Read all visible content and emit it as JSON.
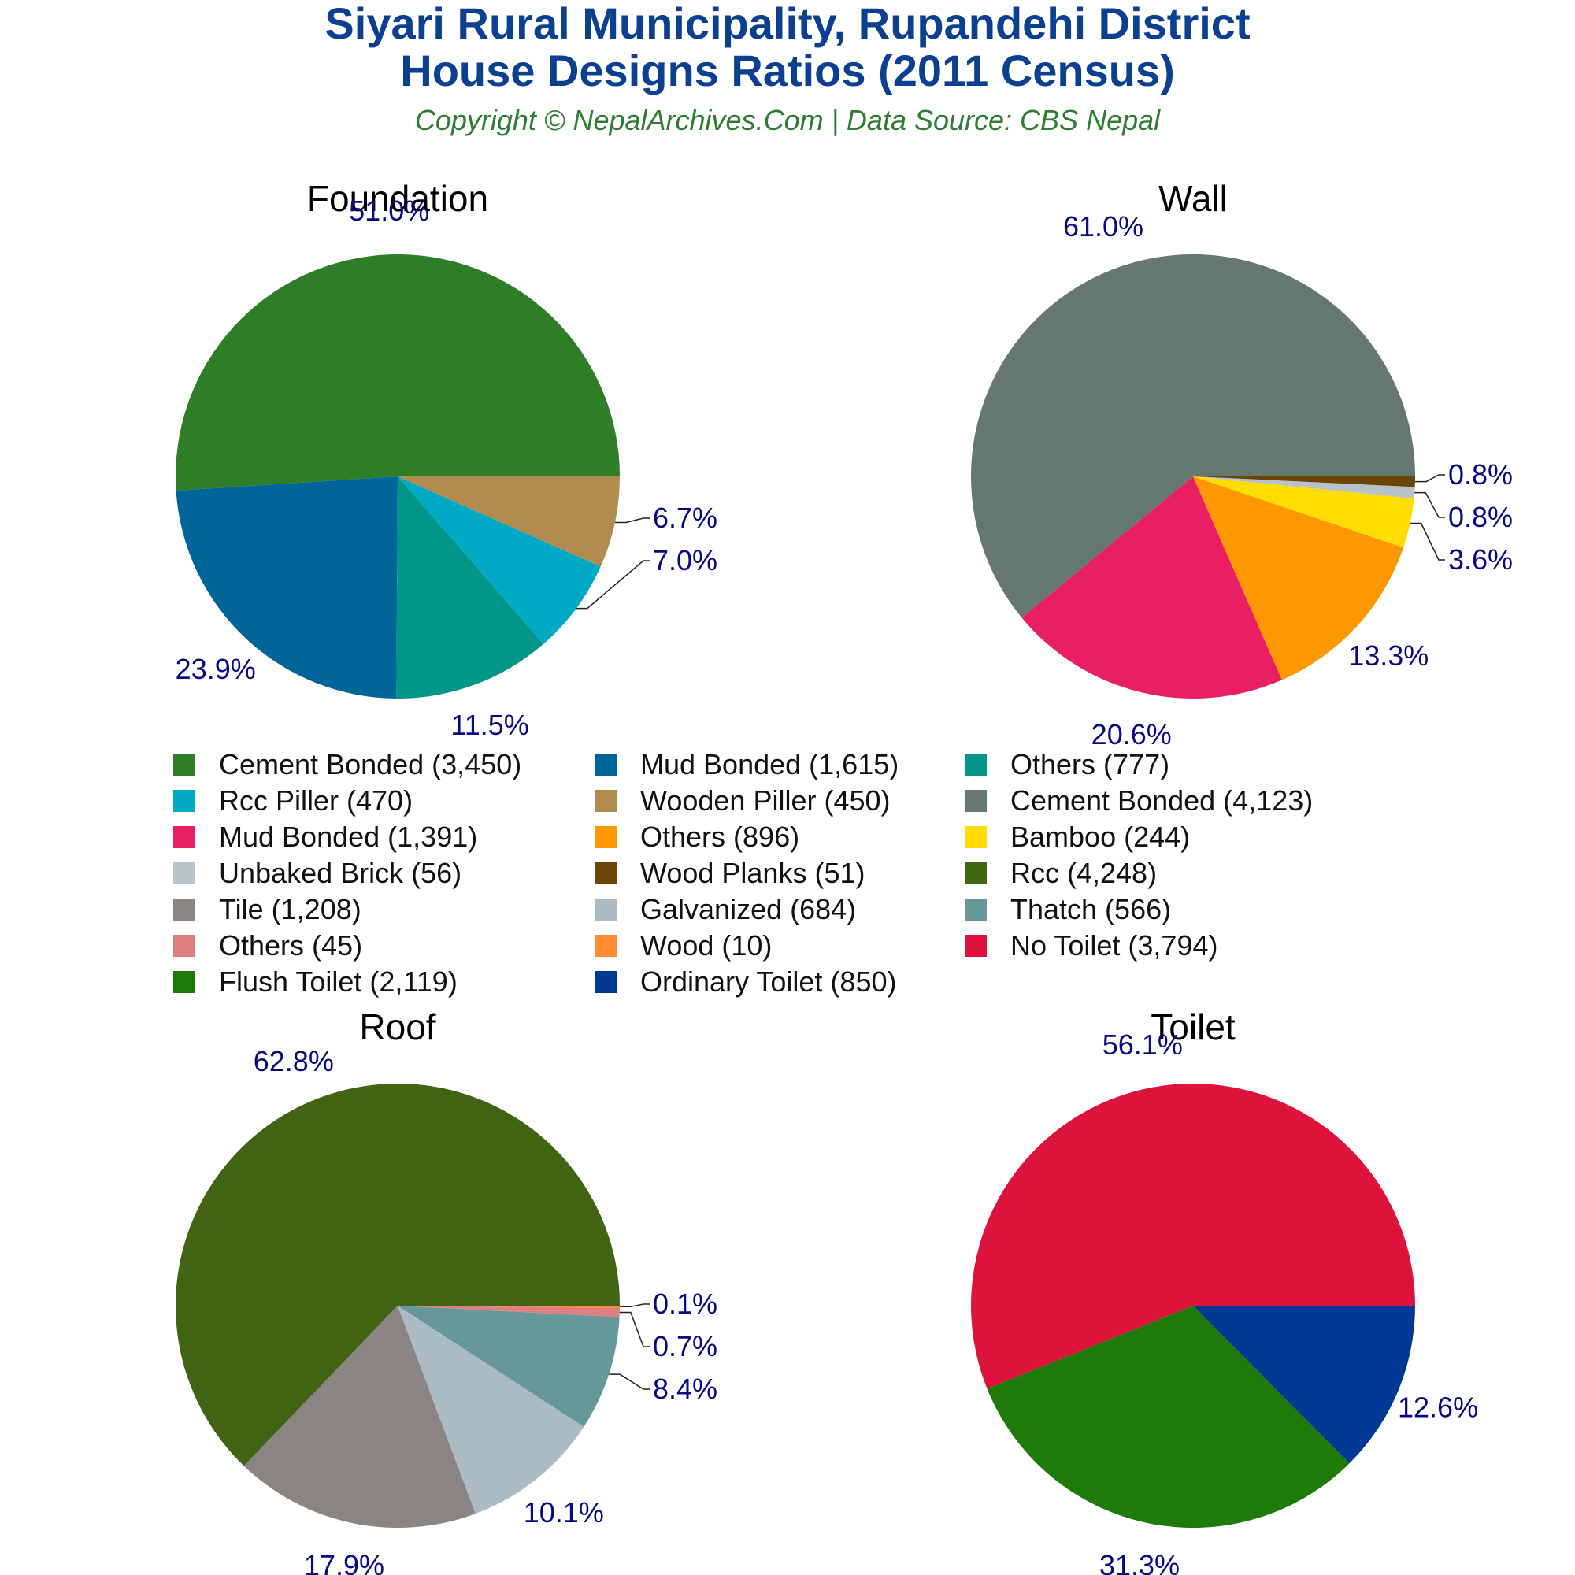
{
  "title_line1": "Siyari Rural Municipality, Rupandehi District",
  "title_line2": "House Designs Ratios (2011 Census)",
  "subtitle": "Copyright © NepalArchives.Com | Data Source: CBS Nepal",
  "colors": {
    "title": "#0b3f8f",
    "subtitle": "#2e7d32",
    "pct_label": "#0a0a80"
  },
  "legend": [
    {
      "label": "Cement Bonded (3,450)",
      "color": "#2e7d27"
    },
    {
      "label": "Mud Bonded (1,615)",
      "color": "#006699"
    },
    {
      "label": "Others (777)",
      "color": "#009688"
    },
    {
      "label": "Rcc Piller (470)",
      "color": "#00aac4"
    },
    {
      "label": "Wooden Piller (450)",
      "color": "#b08d4f"
    },
    {
      "label": "Cement Bonded (4,123)",
      "color": "#657870"
    },
    {
      "label": "Mud Bonded (1,391)",
      "color": "#e91e63"
    },
    {
      "label": "Others (896)",
      "color": "#ff9800"
    },
    {
      "label": "Bamboo (244)",
      "color": "#ffdd00"
    },
    {
      "label": "Unbaked Brick (56)",
      "color": "#b7c3c8"
    },
    {
      "label": "Wood Planks (51)",
      "color": "#6b4508"
    },
    {
      "label": "Rcc (4,248)",
      "color": "#416413"
    },
    {
      "label": "Tile (1,208)",
      "color": "#8a8582"
    },
    {
      "label": "Galvanized (684)",
      "color": "#aabbc3"
    },
    {
      "label": "Thatch (566)",
      "color": "#659999"
    },
    {
      "label": "Others (45)",
      "color": "#df8080"
    },
    {
      "label": "Wood (10)",
      "color": "#ff8c33"
    },
    {
      "label": "No Toilet (3,794)",
      "color": "#dc143c"
    },
    {
      "label": "Flush Toilet (2,119)",
      "color": "#1e7b0a"
    },
    {
      "label": "Ordinary Toilet (850)",
      "color": "#003893"
    }
  ],
  "chart_data": [
    {
      "type": "pie",
      "title": "Foundation",
      "slices": [
        {
          "name": "Cement Bonded",
          "value": 3450,
          "label": "51.0%",
          "color": "#2e7d27"
        },
        {
          "name": "Mud Bonded",
          "value": 1615,
          "label": "23.9%",
          "color": "#006699"
        },
        {
          "name": "Others",
          "value": 777,
          "label": "11.5%",
          "color": "#009688"
        },
        {
          "name": "Rcc Piller",
          "value": 470,
          "label": "7.0%",
          "color": "#00aac4"
        },
        {
          "name": "Wooden Piller",
          "value": 450,
          "label": "6.7%",
          "color": "#b08d4f"
        }
      ]
    },
    {
      "type": "pie",
      "title": "Wall",
      "slices": [
        {
          "name": "Cement Bonded",
          "value": 4123,
          "label": "61.0%",
          "color": "#657870"
        },
        {
          "name": "Mud Bonded",
          "value": 1391,
          "label": "20.6%",
          "color": "#e91e63"
        },
        {
          "name": "Others",
          "value": 896,
          "label": "13.3%",
          "color": "#ff9800"
        },
        {
          "name": "Bamboo",
          "value": 244,
          "label": "3.6%",
          "color": "#ffdd00"
        },
        {
          "name": "Unbaked Brick",
          "value": 56,
          "label": "0.8%",
          "color": "#b7c3c8"
        },
        {
          "name": "Wood Planks",
          "value": 51,
          "label": "0.8%",
          "color": "#6b4508"
        }
      ]
    },
    {
      "type": "pie",
      "title": "Roof",
      "slices": [
        {
          "name": "Rcc",
          "value": 4248,
          "label": "62.8%",
          "color": "#416413"
        },
        {
          "name": "Tile",
          "value": 1208,
          "label": "17.9%",
          "color": "#8a8582"
        },
        {
          "name": "Galvanized",
          "value": 684,
          "label": "10.1%",
          "color": "#aabbc3"
        },
        {
          "name": "Thatch",
          "value": 566,
          "label": "8.4%",
          "color": "#659999"
        },
        {
          "name": "Others",
          "value": 45,
          "label": "0.7%",
          "color": "#df8080"
        },
        {
          "name": "Wood",
          "value": 10,
          "label": "0.1%",
          "color": "#ff8c33"
        }
      ]
    },
    {
      "type": "pie",
      "title": "Toilet",
      "slices": [
        {
          "name": "No Toilet",
          "value": 3794,
          "label": "56.1%",
          "color": "#dc143c"
        },
        {
          "name": "Flush Toilet",
          "value": 2119,
          "label": "31.3%",
          "color": "#1e7b0a"
        },
        {
          "name": "Ordinary Toilet",
          "value": 850,
          "label": "12.6%",
          "color": "#003893"
        }
      ]
    }
  ]
}
